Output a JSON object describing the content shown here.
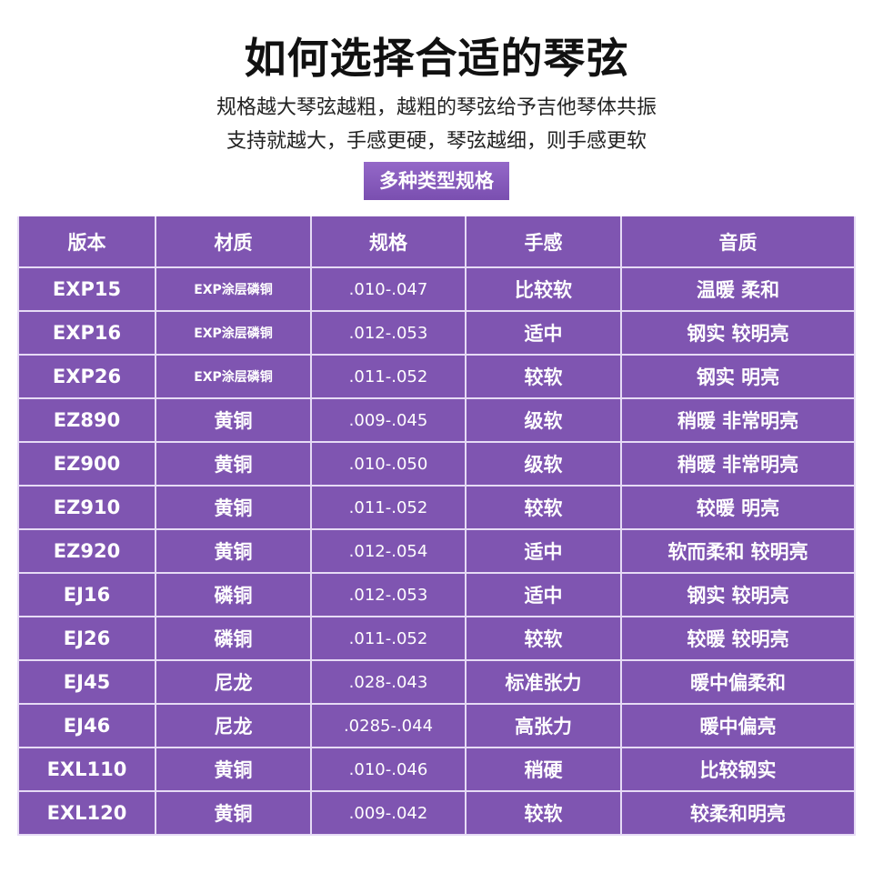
{
  "title": "如何选择合适的琴弦",
  "subtitle_lines": [
    "规格越大琴弦越粗，越粗的琴弦给予吉他琴体共振",
    "支持就越大，手感更硬，琴弦越细，则手感更软"
  ],
  "badge": "多种类型规格",
  "colors": {
    "table_bg": "#7f55b1",
    "grid": "#e6dbf5",
    "text": "#ffffff"
  },
  "table": {
    "headers": [
      "版本",
      "材质",
      "规格",
      "手感",
      "音质"
    ],
    "rows": [
      [
        "EXP15",
        "EXP涂层磷铜",
        ".010-.047",
        "比较软",
        "温暖 柔和"
      ],
      [
        "EXP16",
        "EXP涂层磷铜",
        ".012-.053",
        "适中",
        "钢实 较明亮"
      ],
      [
        "EXP26",
        "EXP涂层磷铜",
        ".011-.052",
        "较软",
        "钢实 明亮"
      ],
      [
        "EZ890",
        "黄铜",
        ".009-.045",
        "级软",
        "稍暖 非常明亮"
      ],
      [
        "EZ900",
        "黄铜",
        ".010-.050",
        "级软",
        "稍暖 非常明亮"
      ],
      [
        "EZ910",
        "黄铜",
        ".011-.052",
        "较软",
        "较暖 明亮"
      ],
      [
        "EZ920",
        "黄铜",
        ".012-.054",
        "适中",
        "软而柔和 较明亮"
      ],
      [
        "EJ16",
        "磷铜",
        ".012-.053",
        "适中",
        "钢实 较明亮"
      ],
      [
        "EJ26",
        "磷铜",
        ".011-.052",
        "较软",
        "较暖 较明亮"
      ],
      [
        "EJ45",
        "尼龙",
        ".028-.043",
        "标准张力",
        "暖中偏柔和"
      ],
      [
        "EJ46",
        "尼龙",
        ".0285-.044",
        "高张力",
        "暖中偏亮"
      ],
      [
        "EXL110",
        "黄铜",
        ".010-.046",
        "稍硬",
        "比较钢实"
      ],
      [
        "EXL120",
        "黄铜",
        ".009-.042",
        "较软",
        "较柔和明亮"
      ]
    ]
  }
}
